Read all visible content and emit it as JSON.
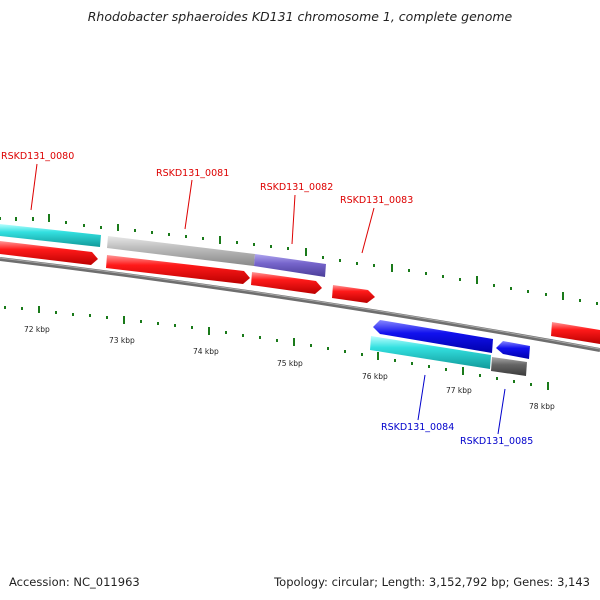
{
  "title": "Rhodobacter sphaeroides KD131 chromosome 1, complete genome",
  "footer": {
    "accession": "Accession: NC_011963",
    "summary": "Topology: circular; Length: 3,152,792 bp; Genes: 3,143"
  },
  "colors": {
    "backbone": "#808080",
    "forward_tick": "#1a7a1a",
    "reverse_tick": "#1a7a1a",
    "cds_red": "#ee1111",
    "cds_cyan": "#33dddd",
    "cds_gray": "#bbbbbb",
    "cds_purple": "#7766cc",
    "cds_blue": "#1111ee",
    "cds_dark_gray": "#666666",
    "label_red": "#dd0000",
    "label_blue": "#0000cc"
  },
  "scale_labels": [
    "72 kbp",
    "73 kbp",
    "74 kbp",
    "75 kbp",
    "76 kbp",
    "77 kbp",
    "78 kbp"
  ],
  "gene_labels": {
    "top": [
      "RSKD131_0080",
      "RSKD131_0081",
      "RSKD131_0082",
      "RSKD131_0083"
    ],
    "bottom": [
      "RSKD131_0084",
      "RSKD131_0085"
    ]
  }
}
